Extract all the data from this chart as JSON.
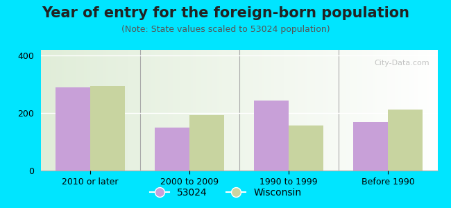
{
  "title": "Year of entry for the foreign-born population",
  "subtitle": "(Note: State values scaled to 53024 population)",
  "categories": [
    "2010 or later",
    "2000 to 2009",
    "1990 to 1999",
    "Before 1990"
  ],
  "values_53024": [
    290,
    150,
    243,
    170
  ],
  "values_wisconsin": [
    295,
    193,
    158,
    213
  ],
  "color_53024": "#c8a0d8",
  "color_wisconsin": "#c8d4a0",
  "background_outer": "#00e5ff",
  "ylim": [
    0,
    420
  ],
  "yticks": [
    0,
    200,
    400
  ],
  "bar_width": 0.35,
  "legend_label_53024": "53024",
  "legend_label_wisconsin": "Wisconsin",
  "title_fontsize": 15,
  "subtitle_fontsize": 9,
  "tick_fontsize": 9,
  "legend_fontsize": 10
}
